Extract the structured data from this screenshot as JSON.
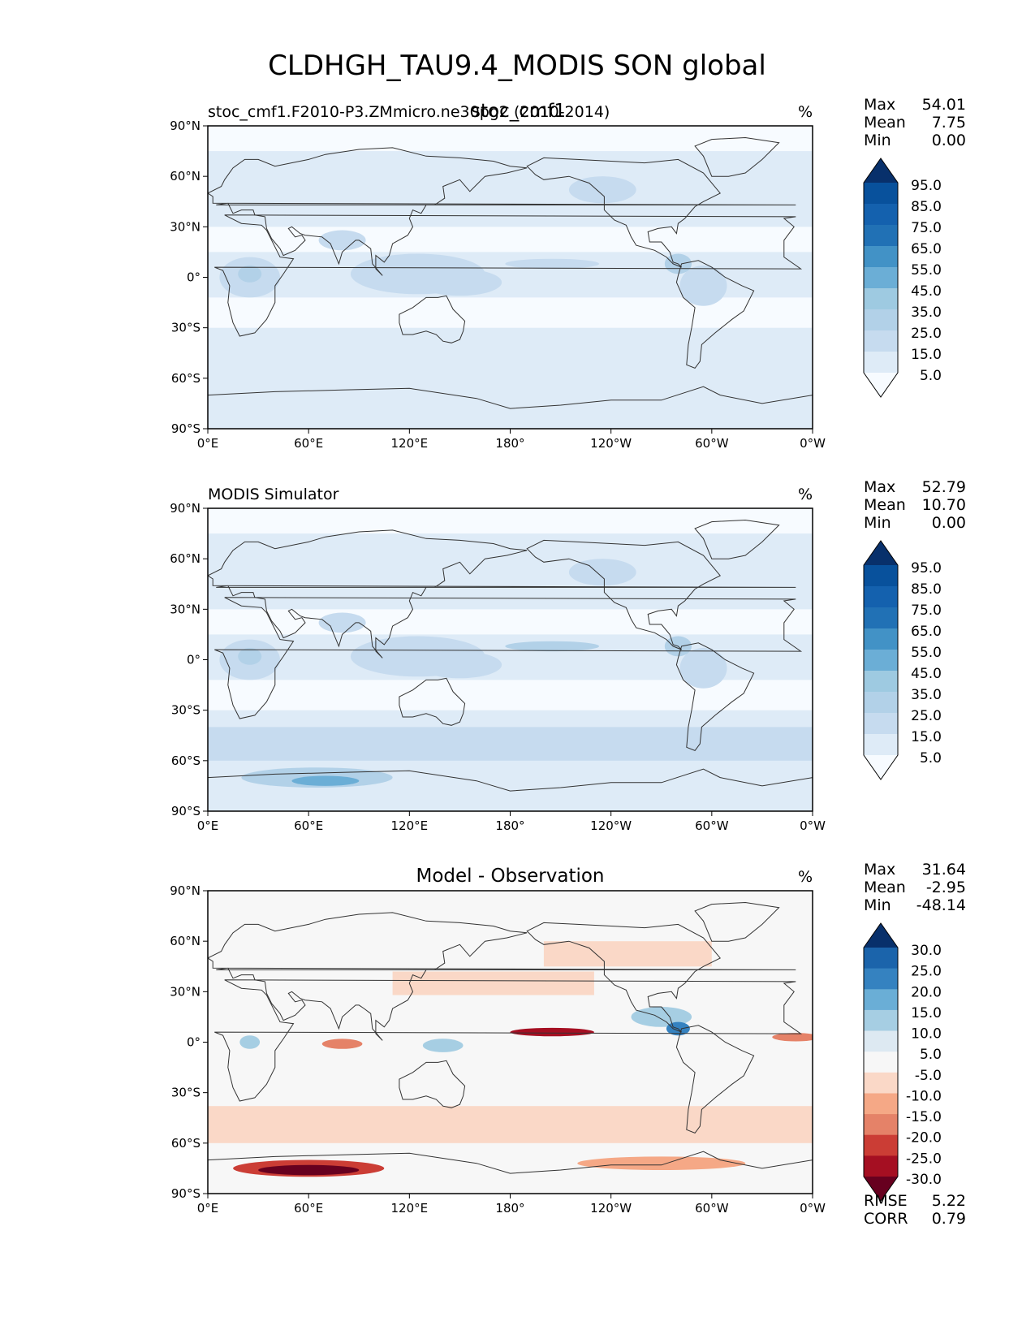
{
  "figure": {
    "title": "CLDHGH_TAU9.4_MODIS SON global"
  },
  "colors": {
    "blues": [
      "#f7fbff",
      "#deebf7",
      "#c6dbef",
      "#b2d1e8",
      "#9ecae1",
      "#6baed6",
      "#4292c6",
      "#2171b5",
      "#1461ae",
      "#08519c",
      "#08306b"
    ],
    "diverging": [
      "#67001f",
      "#a50f22",
      "#cb3d35",
      "#e58268",
      "#f5a886",
      "#fad8c7",
      "#f7f7f7",
      "#dde9f2",
      "#a6cee3",
      "#6aaed6",
      "#3582c0",
      "#1b64ab",
      "#08306b"
    ],
    "coastline": "#333333",
    "land_under_overlay": "#ffffff"
  },
  "chart_data": [
    {
      "type": "heatmap",
      "name": "test",
      "title_left": "stoc_cmf1.F2010-P3.ZMmicro.ne30pg2 (2010-2014)",
      "title_center": "stoc_cmf1",
      "units": "%",
      "stats": {
        "Max": "54.01",
        "Mean": "7.75",
        "Min": "0.00"
      },
      "colorbar": {
        "levels": [
          "5.0",
          "15.0",
          "25.0",
          "35.0",
          "45.0",
          "55.0",
          "65.0",
          "75.0",
          "85.0",
          "95.0"
        ],
        "palette": "blues",
        "extend": "both"
      },
      "xticks": [
        "0°E",
        "60°E",
        "120°E",
        "180°",
        "120°W",
        "60°W",
        "0°W"
      ],
      "yticks": [
        "90°N",
        "60°N",
        "30°N",
        "0°",
        "30°S",
        "60°S",
        "90°S"
      ],
      "xlim": [
        0,
        360
      ],
      "ylim": [
        -90,
        90
      ]
    },
    {
      "type": "heatmap",
      "name": "reference",
      "title_left": "MODIS Simulator",
      "title_center": "",
      "units": "%",
      "stats": {
        "Max": "52.79",
        "Mean": "10.70",
        "Min": "0.00"
      },
      "colorbar": {
        "levels": [
          "5.0",
          "15.0",
          "25.0",
          "35.0",
          "45.0",
          "55.0",
          "65.0",
          "75.0",
          "85.0",
          "95.0"
        ],
        "palette": "blues",
        "extend": "both"
      },
      "xticks": [
        "0°E",
        "60°E",
        "120°E",
        "180°",
        "120°W",
        "60°W",
        "0°W"
      ],
      "yticks": [
        "90°N",
        "60°N",
        "30°N",
        "0°",
        "30°S",
        "60°S",
        "90°S"
      ],
      "xlim": [
        0,
        360
      ],
      "ylim": [
        -90,
        90
      ]
    },
    {
      "type": "heatmap",
      "name": "difference",
      "title_left": "",
      "title_center": "Model - Observation",
      "units": "%",
      "stats": {
        "Max": "31.64",
        "Mean": "-2.95",
        "Min": "-48.14"
      },
      "extra_stats": {
        "RMSE": "5.22",
        "CORR": "0.79"
      },
      "colorbar": {
        "levels": [
          "-30.0",
          "-25.0",
          "-20.0",
          "-15.0",
          "-10.0",
          "-5.0",
          "5.0",
          "10.0",
          "15.0",
          "20.0",
          "25.0",
          "30.0"
        ],
        "palette": "diverging",
        "extend": "both"
      },
      "xticks": [
        "0°E",
        "60°E",
        "120°E",
        "180°",
        "120°W",
        "60°W",
        "0°W"
      ],
      "yticks": [
        "90°N",
        "60°N",
        "30°N",
        "0°",
        "30°S",
        "60°S",
        "90°S"
      ],
      "xlim": [
        0,
        360
      ],
      "ylim": [
        -90,
        90
      ]
    }
  ]
}
